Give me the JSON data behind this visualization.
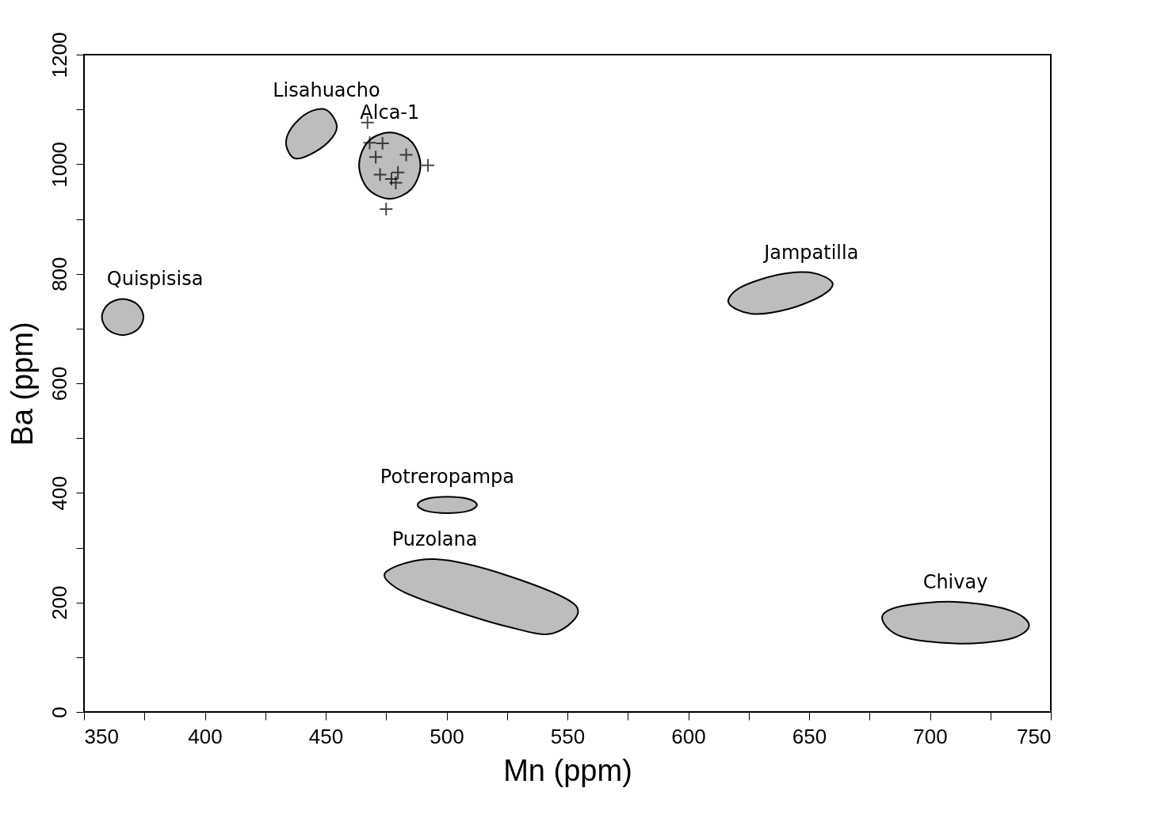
{
  "chart_data": {
    "type": "scatter",
    "xlabel": "Mn (ppm)",
    "ylabel": "Ba (ppm)",
    "xlim": [
      350,
      750
    ],
    "ylim": [
      0,
      1200
    ],
    "xticks": [
      350,
      {
        "value": 375,
        "label": null
      },
      400,
      {
        "value": 425,
        "label": null
      },
      450,
      {
        "value": 475,
        "label": null
      },
      500,
      {
        "value": 525,
        "label": null
      },
      550,
      {
        "value": 575,
        "label": null
      },
      600,
      {
        "value": 625,
        "label": null
      },
      650,
      {
        "value": 675,
        "label": null
      },
      700,
      {
        "value": 725,
        "label": null
      },
      750
    ],
    "yticks": [
      0,
      {
        "value": 100,
        "label": null
      },
      200,
      {
        "value": 300,
        "label": null
      },
      400,
      {
        "value": 500,
        "label": null
      },
      600,
      {
        "value": 700,
        "label": null
      },
      800,
      {
        "value": 900,
        "label": null
      },
      1000,
      {
        "value": 1100,
        "label": null
      },
      1200
    ],
    "grid": false,
    "legend": false,
    "series": [
      {
        "name": "Quispisisa",
        "type": "area",
        "color": "#bdbdbd",
        "x": [
          374.6,
          372.1,
          366.0,
          359.9,
          357.4,
          359.9,
          366.0,
          372.1
        ],
        "values": [
          721,
          744,
          754,
          744,
          721,
          698,
          688,
          698
        ]
      },
      {
        "name": "Lisahuacho",
        "type": "area",
        "color": "#bdbdbd",
        "x": [
          454.6,
          450.3,
          442.6,
          435.8,
          433.6,
          437.0,
          443.2,
          451.2
        ],
        "values": [
          1069,
          1099,
          1094,
          1066,
          1036,
          1011,
          1017,
          1041
        ]
      },
      {
        "name": "Alca-1",
        "type": "area",
        "color": "#bdbdbd",
        "x": [
          489.2,
          485.5,
          476.5,
          467.5,
          463.8,
          467.5,
          476.5,
          485.5
        ],
        "values": [
          998,
          1041,
          1058,
          1041,
          998,
          955,
          937,
          955
        ]
      },
      {
        "name": "Jampatilla",
        "type": "area",
        "color": "#bdbdbd",
        "x": [
          659.6,
          650.9,
          637.0,
          621.6,
          616.7,
          626.2,
          641.7,
          655.6
        ],
        "values": [
          784,
          802,
          798,
          775,
          747,
          727,
          736,
          761
        ]
      },
      {
        "name": "Potreropampa",
        "type": "area",
        "color": "#bdbdbd",
        "x": [
          512.6,
          509.0,
          500.3,
          491.6,
          488.0,
          491.6,
          500.3,
          509.0
        ],
        "values": [
          378,
          389,
          393,
          389,
          378,
          367,
          363,
          367
        ]
      },
      {
        "name": "Puzolana",
        "type": "area",
        "color": "#bdbdbd",
        "x": [
          475.3,
          495.1,
          525.9,
          553.7,
          544.4,
          525.9,
          495.1,
          479.0
        ],
        "values": [
          257,
          279,
          248,
          193,
          144,
          155,
          197,
          227
        ]
      },
      {
        "name": "Chivay",
        "type": "area",
        "color": "#bdbdbd",
        "x": [
          741.0,
          732.7,
          710.5,
          688.0,
          680.2,
          688.0,
          710.5,
          732.7
        ],
        "values": [
          158,
          186,
          201,
          193,
          172,
          138,
          125,
          133
        ]
      },
      {
        "marker": "cross",
        "color": "#000000",
        "x": [
          467.3,
          468.2,
          473.5,
          470.7,
          483.3,
          492.3,
          472.5,
          479.9,
          477.2,
          479.0,
          475.0
        ],
        "values": [
          1076,
          1039,
          1038,
          1013,
          1017,
          998,
          981,
          985,
          973,
          966,
          918
        ]
      }
    ]
  }
}
